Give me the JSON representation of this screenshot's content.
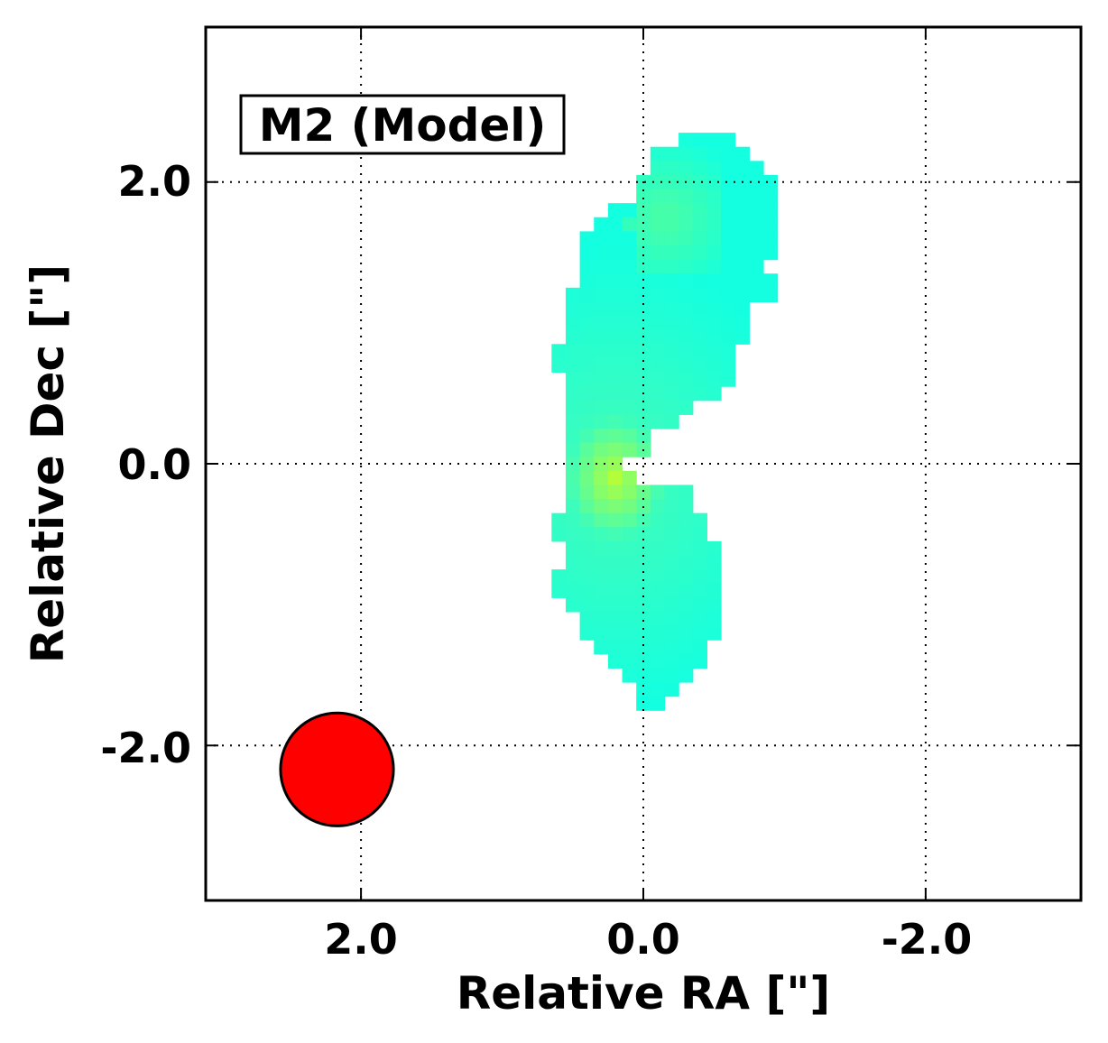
{
  "chart_data": {
    "type": "heatmap",
    "title": "",
    "panel_label": "M2 (Model)",
    "xlabel": "Relative RA [\"]",
    "ylabel": "Relative Dec [\"]",
    "xlim": [
      3.1,
      -3.1
    ],
    "ylim": [
      -3.1,
      3.1
    ],
    "xticks": [
      2.0,
      0.0,
      -2.0
    ],
    "yticks": [
      2.0,
      0.0,
      -2.0
    ],
    "xtick_labels": [
      "2.0",
      "0.0",
      "-2.0"
    ],
    "ytick_labels": [
      "2.0",
      "0.0",
      "-2.0"
    ],
    "grid": true,
    "grid_style": "dotted",
    "pixel_size_arcsec": 0.1,
    "colormap": "rainbow",
    "emission_rows": [
      {
        "dec": 2.3,
        "ra_range": [
          -0.3,
          -0.6
        ]
      },
      {
        "dec": 2.2,
        "ra_range": [
          -0.1,
          -0.7
        ]
      },
      {
        "dec": 2.1,
        "ra_range": [
          -0.1,
          -0.8
        ]
      },
      {
        "dec": 2.0,
        "ra_range": [
          0.0,
          -0.9
        ]
      },
      {
        "dec": 1.9,
        "ra_range": [
          0.0,
          -0.9
        ]
      },
      {
        "dec": 1.8,
        "ra_range": [
          0.2,
          -0.9
        ]
      },
      {
        "dec": 1.7,
        "ra_range": [
          0.3,
          -0.9
        ]
      },
      {
        "dec": 1.6,
        "ra_range": [
          0.4,
          -0.9
        ]
      },
      {
        "dec": 1.5,
        "ra_range": [
          0.4,
          -0.9
        ]
      },
      {
        "dec": 1.4,
        "ra_range": [
          0.4,
          -0.8
        ]
      },
      {
        "dec": 1.3,
        "ra_range": [
          0.4,
          -0.9
        ]
      },
      {
        "dec": 1.2,
        "ra_range": [
          0.5,
          -0.9
        ]
      },
      {
        "dec": 1.1,
        "ra_range": [
          0.5,
          -0.7
        ]
      },
      {
        "dec": 1.0,
        "ra_range": [
          0.5,
          -0.7
        ]
      },
      {
        "dec": 0.9,
        "ra_range": [
          0.5,
          -0.7
        ]
      },
      {
        "dec": 0.8,
        "ra_range": [
          0.6,
          -0.6
        ]
      },
      {
        "dec": 0.7,
        "ra_range": [
          0.6,
          -0.6
        ]
      },
      {
        "dec": 0.6,
        "ra_range": [
          0.5,
          -0.6
        ]
      },
      {
        "dec": 0.5,
        "ra_range": [
          0.5,
          -0.5
        ]
      },
      {
        "dec": 0.4,
        "ra_range": [
          0.5,
          -0.3
        ]
      },
      {
        "dec": 0.3,
        "ra_range": [
          0.5,
          -0.2
        ]
      },
      {
        "dec": 0.2,
        "ra_range": [
          0.5,
          0.0
        ]
      },
      {
        "dec": 0.1,
        "ra_range": [
          0.5,
          0.0
        ]
      },
      {
        "dec": 0.0,
        "ra_range": [
          0.5,
          0.2
        ]
      },
      {
        "dec": -0.1,
        "ra_range": [
          0.5,
          0.1
        ]
      },
      {
        "dec": -0.2,
        "ra_range": [
          0.5,
          -0.3
        ]
      },
      {
        "dec": -0.3,
        "ra_range": [
          0.5,
          -0.3
        ]
      },
      {
        "dec": -0.4,
        "ra_range": [
          0.6,
          -0.4
        ]
      },
      {
        "dec": -0.5,
        "ra_range": [
          0.6,
          -0.4
        ]
      },
      {
        "dec": -0.6,
        "ra_range": [
          0.5,
          -0.5
        ]
      },
      {
        "dec": -0.7,
        "ra_range": [
          0.5,
          -0.5
        ]
      },
      {
        "dec": -0.8,
        "ra_range": [
          0.6,
          -0.5
        ]
      },
      {
        "dec": -0.9,
        "ra_range": [
          0.6,
          -0.5
        ]
      },
      {
        "dec": -1.0,
        "ra_range": [
          0.5,
          -0.5
        ]
      },
      {
        "dec": -1.1,
        "ra_range": [
          0.4,
          -0.5
        ]
      },
      {
        "dec": -1.2,
        "ra_range": [
          0.4,
          -0.5
        ]
      },
      {
        "dec": -1.3,
        "ra_range": [
          0.3,
          -0.4
        ]
      },
      {
        "dec": -1.4,
        "ra_range": [
          0.2,
          -0.4
        ]
      },
      {
        "dec": -1.5,
        "ra_range": [
          0.1,
          -0.3
        ]
      },
      {
        "dec": -1.6,
        "ra_range": [
          0.0,
          -0.2
        ]
      },
      {
        "dec": -1.7,
        "ra_range": [
          -0.0,
          -0.1
        ]
      }
    ],
    "intensity_peak": {
      "ra": 0.2,
      "dec": -0.1
    },
    "beam": {
      "center_ra": 2.17,
      "center_dec": -2.17,
      "radius_arcsec": 0.4,
      "color": "#ff0000",
      "edge_color": "#000000"
    },
    "colors": {
      "low": "#14ffe0",
      "mid": "#38fdc0",
      "high": "#b3fd3a"
    }
  }
}
